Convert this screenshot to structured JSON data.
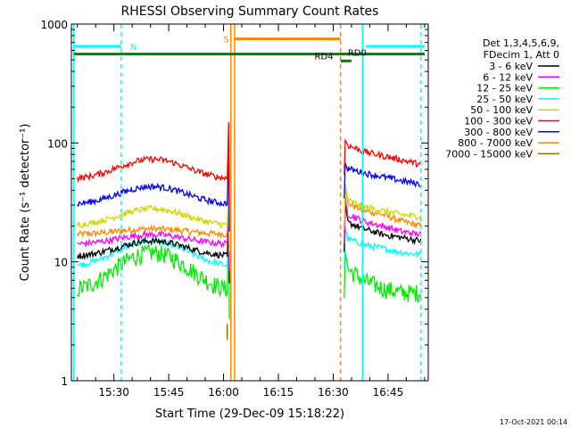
{
  "chart_data": {
    "type": "line",
    "title": "RHESSI Observing Summary Count Rates",
    "xlabel": "Start Time (29-Dec-09 15:18:22)",
    "ylabel": "Count Rate (s⁻¹ detector⁻¹)",
    "y_scale": "log",
    "ylim": [
      1,
      1000
    ],
    "y_ticks": [
      "1",
      "10",
      "100",
      "1000"
    ],
    "xlim": [
      "15:18:22",
      "16:56:00"
    ],
    "x_ticks": [
      "15:30",
      "15:45",
      "16:00",
      "16:15",
      "16:30",
      "16:45"
    ],
    "footer_date": "17-Oct-2021 00:14",
    "legend": {
      "header": [
        "Det 1,3,4,5,6,9,",
        "FDecim 1, Att 0"
      ],
      "position": "right"
    },
    "series": [
      {
        "name": "3 - 6 keV",
        "color": "#000000",
        "first": {
          "start": "15:20",
          "end": "16:01",
          "base": 11,
          "peak": 15
        },
        "second": {
          "start": "16:33",
          "end": "16:54",
          "spike": 30,
          "values": [
            22,
            19,
            17,
            16,
            15
          ]
        }
      },
      {
        "name": "6 - 12 keV",
        "color": "#ff00ff",
        "first": {
          "start": "15:20",
          "end": "16:01",
          "base": 14,
          "peak": 17
        },
        "second": {
          "start": "16:33",
          "end": "16:54",
          "spike": 35,
          "values": [
            26,
            22,
            20,
            18,
            17
          ]
        }
      },
      {
        "name": "12 - 25 keV",
        "color": "#00ee00",
        "first": {
          "start": "15:20",
          "end": "16:01",
          "base": 5.5,
          "peak": 12
        },
        "second": {
          "start": "16:33",
          "end": "16:54",
          "spike": 12,
          "values": [
            9,
            7,
            6,
            5.5,
            5.5
          ]
        }
      },
      {
        "name": "25 - 50 keV",
        "color": "#00ffff",
        "first": {
          "start": "15:20",
          "end": "16:01",
          "base": 9,
          "peak": 15
        },
        "second": {
          "start": "16:33",
          "end": "16:54",
          "spike": 20,
          "values": [
            16,
            14,
            13,
            12,
            11.5
          ]
        }
      },
      {
        "name": "50 - 100 keV",
        "color": "#d4d400",
        "first": {
          "start": "15:20",
          "end": "16:01",
          "base": 20,
          "peak": 28
        },
        "second": {
          "start": "16:33",
          "end": "16:54",
          "spike": 45,
          "values": [
            34,
            29,
            27,
            25,
            24
          ]
        }
      },
      {
        "name": "100 - 300 keV",
        "color": "#ff0000",
        "first": {
          "start": "15:20",
          "end": "16:01",
          "base": 49,
          "peak": 73
        },
        "second": {
          "start": "16:33",
          "end": "16:54",
          "spike": 105,
          "values": [
            98,
            85,
            78,
            72,
            66
          ]
        }
      },
      {
        "name": "300 - 800 keV",
        "color": "#0000ff",
        "first": {
          "start": "15:20",
          "end": "16:01",
          "base": 30,
          "peak": 43
        },
        "second": {
          "start": "16:33",
          "end": "16:54",
          "spike": 68,
          "values": [
            62,
            56,
            52,
            48,
            45
          ]
        }
      },
      {
        "name": "800 - 7000 keV",
        "color": "#ff8800",
        "first": {
          "start": "15:20",
          "end": "16:01",
          "base": 17,
          "peak": 19
        },
        "second": {
          "start": "16:33",
          "end": "16:54",
          "spike": 42,
          "values": [
            32,
            27,
            25,
            22,
            20
          ]
        }
      },
      {
        "name": "7000 - 15000 keV",
        "color": "#8b7500",
        "first": null,
        "second": null
      }
    ],
    "flags": [
      {
        "label": "N",
        "color": "#00ffff",
        "segments": [
          [
            "15:19",
            "15:32"
          ],
          [
            "16:39",
            "16:55"
          ]
        ],
        "level": 650
      },
      {
        "label": "S",
        "color": "#ff8800",
        "segments": [
          [
            "16:03",
            "16:32"
          ]
        ],
        "level": 750
      },
      {
        "label": "RD0",
        "color": "#008000",
        "segments": [
          [
            "15:19",
            "16:55"
          ]
        ],
        "level": 560
      },
      {
        "label": "RD4",
        "color": "#008000",
        "segments": [
          [
            "16:32",
            "16:35"
          ]
        ],
        "level": 490
      }
    ],
    "vertical_lines": [
      {
        "time": "15:19",
        "color": "#00ffff",
        "style": "solid"
      },
      {
        "time": "15:32",
        "color": "#00ffff",
        "style": "dashed"
      },
      {
        "time": "16:02",
        "color": "#ff8800",
        "style": "solid"
      },
      {
        "time": "16:03",
        "color": "#ff8800",
        "style": "solid"
      },
      {
        "time": "16:32",
        "color": "#ff8800",
        "style": "dashed"
      },
      {
        "time": "16:38",
        "color": "#00ffff",
        "style": "solid"
      },
      {
        "time": "16:54",
        "color": "#00ffff",
        "style": "dashed"
      }
    ]
  }
}
